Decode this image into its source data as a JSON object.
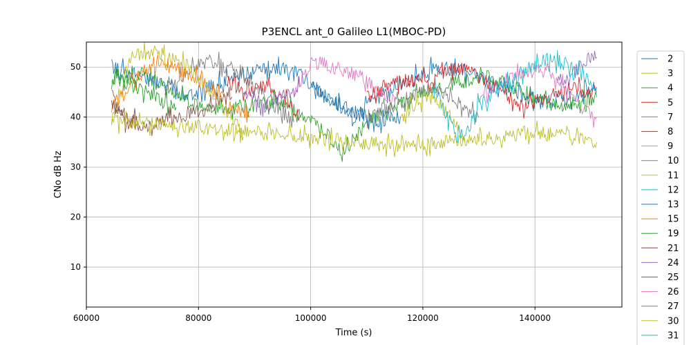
{
  "chart_data": {
    "type": "line",
    "title": "P3ENCL ant_0 Galileo L1(MBOC-PD)",
    "xlabel": "Time (s)",
    "ylabel": "CNo dB Hz",
    "xlim": [
      60000,
      155500
    ],
    "ylim": [
      2,
      55
    ],
    "xticks": [
      60000,
      80000,
      100000,
      120000,
      140000
    ],
    "yticks": [
      10,
      20,
      30,
      40,
      50
    ],
    "grid": true,
    "legend_position": "right-outside",
    "series": [
      {
        "name": "2",
        "color": "#1f77b4",
        "points": [
          [
            64500,
            50.2
          ],
          [
            70000,
            48
          ],
          [
            78000,
            44
          ],
          [
            85000,
            47.5
          ],
          [
            93000,
            50
          ],
          [
            97000,
            49.5
          ],
          [
            102000,
            45
          ],
          [
            108000,
            40
          ],
          [
            112000,
            44
          ],
          [
            118000,
            48
          ],
          [
            122000,
            50
          ],
          [
            128000,
            49
          ],
          [
            134000,
            46
          ],
          [
            141000,
            43
          ],
          [
            147000,
            44
          ],
          [
            151000,
            46
          ]
        ]
      },
      {
        "name": "3",
        "color": "#bcbd22",
        "points": [
          [
            64500,
            40
          ],
          [
            68000,
            52
          ],
          [
            72000,
            53
          ],
          [
            78000,
            50.5
          ],
          [
            82000,
            45
          ],
          [
            86000,
            40
          ],
          [
            88000,
            36
          ]
        ]
      },
      {
        "name": "4",
        "color": "#2ca02c",
        "points": [
          [
            64500,
            47
          ],
          [
            70000,
            48.5
          ],
          [
            76000,
            45
          ],
          [
            81000,
            41
          ],
          [
            87000,
            42
          ],
          [
            94000,
            43
          ],
          [
            100000,
            40
          ],
          [
            106000,
            33
          ],
          [
            110000,
            39
          ],
          [
            114000,
            42
          ],
          [
            120000,
            45
          ],
          [
            126000,
            47
          ],
          [
            132000,
            48
          ],
          [
            138000,
            45
          ],
          [
            144000,
            42
          ],
          [
            151000,
            44
          ]
        ]
      },
      {
        "name": "5",
        "color": "#d62728",
        "points": [
          [
            85000,
            47
          ],
          [
            88000,
            45.5
          ],
          [
            92000,
            46
          ],
          [
            96000,
            43
          ],
          [
            98000,
            40
          ]
        ]
      },
      {
        "name": "7",
        "color": "#9467bd",
        "points": [
          [
            144000,
            47
          ],
          [
            147000,
            49
          ],
          [
            149000,
            51.5
          ],
          [
            151000,
            52
          ]
        ]
      },
      {
        "name": "8",
        "color": "#8c564b",
        "points": [
          [
            64500,
            45
          ],
          [
            66000,
            41
          ],
          [
            67500,
            38
          ],
          [
            69000,
            40
          ]
        ]
      },
      {
        "name": "9",
        "color": "#e377c2",
        "points": [
          [
            97000,
            45
          ],
          [
            100000,
            51
          ],
          [
            103000,
            50.5
          ],
          [
            106000,
            49.5
          ],
          [
            109000,
            48
          ],
          [
            112000,
            45.5
          ],
          [
            115000,
            43
          ]
        ]
      },
      {
        "name": "10",
        "color": "#7f7f7f",
        "points": [
          [
            74000,
            45
          ],
          [
            78000,
            49
          ],
          [
            82000,
            51.5
          ],
          [
            86000,
            49.5
          ],
          [
            90000,
            46
          ],
          [
            94000,
            42
          ],
          [
            97000,
            39
          ]
        ]
      },
      {
        "name": "11",
        "color": "#bcbd22",
        "points": [
          [
            116000,
            40
          ],
          [
            119000,
            43
          ],
          [
            122000,
            44
          ],
          [
            125000,
            40
          ],
          [
            127500,
            35
          ]
        ]
      },
      {
        "name": "12",
        "color": "#17becf",
        "points": [
          [
            122000,
            46
          ],
          [
            124000,
            41
          ],
          [
            126000,
            36
          ],
          [
            128000,
            37
          ],
          [
            130000,
            43
          ]
        ]
      },
      {
        "name": "13",
        "color": "#1f77b4",
        "points": [
          [
            100000,
            46
          ],
          [
            104000,
            43
          ],
          [
            108000,
            41
          ],
          [
            112000,
            39
          ],
          [
            116000,
            40
          ]
        ]
      },
      {
        "name": "15",
        "color": "#ff7f0e",
        "points": [
          [
            64500,
            42
          ],
          [
            67000,
            45
          ],
          [
            70000,
            49
          ],
          [
            74000,
            50.5
          ],
          [
            78000,
            49
          ],
          [
            82000,
            46
          ],
          [
            86000,
            42
          ],
          [
            89000,
            40
          ]
        ]
      },
      {
        "name": "19",
        "color": "#2ca02c",
        "points": [
          [
            64500,
            48
          ],
          [
            68000,
            46.5
          ],
          [
            72000,
            44
          ],
          [
            76000,
            42
          ]
        ]
      },
      {
        "name": "21",
        "color": "#d62728",
        "points": [
          [
            110000,
            44
          ],
          [
            114000,
            46.5
          ],
          [
            118000,
            47.5
          ],
          [
            122000,
            48
          ],
          [
            126000,
            50
          ],
          [
            130000,
            48
          ],
          [
            134000,
            45
          ],
          [
            138000,
            42
          ],
          [
            142000,
            44
          ],
          [
            146000,
            46
          ],
          [
            151000,
            45
          ]
        ]
      },
      {
        "name": "24",
        "color": "#9467bd",
        "points": [
          [
            88000,
            45
          ],
          [
            92000,
            42
          ],
          [
            95000,
            44
          ],
          [
            98000,
            46
          ]
        ]
      },
      {
        "name": "25",
        "color": "#8c564b",
        "points": [
          [
            64500,
            42
          ],
          [
            70000,
            38
          ],
          [
            76000,
            40
          ],
          [
            82000,
            42
          ],
          [
            86000,
            44
          ]
        ]
      },
      {
        "name": "26",
        "color": "#e377c2",
        "points": [
          [
            130000,
            44
          ],
          [
            134000,
            47
          ],
          [
            138000,
            49
          ],
          [
            142000,
            49.5
          ],
          [
            146000,
            45
          ],
          [
            149000,
            41
          ],
          [
            151000,
            40
          ]
        ]
      },
      {
        "name": "27",
        "color": "#7f7f7f",
        "points": [
          [
            110000,
            40
          ],
          [
            114000,
            42
          ],
          [
            118000,
            44
          ],
          [
            122000,
            46
          ],
          [
            126000,
            43
          ],
          [
            130000,
            40
          ]
        ]
      },
      {
        "name": "30",
        "color": "#bcbd22",
        "points": [
          [
            64500,
            39
          ],
          [
            80000,
            38
          ],
          [
            100000,
            36
          ],
          [
            117000,
            34
          ],
          [
            140000,
            37
          ],
          [
            151000,
            35
          ]
        ]
      },
      {
        "name": "31",
        "color": "#17becf",
        "points": [
          [
            130000,
            42
          ],
          [
            134000,
            46
          ],
          [
            138000,
            49
          ],
          [
            142000,
            51.5
          ],
          [
            146000,
            50.5
          ],
          [
            149000,
            48
          ],
          [
            151000,
            46
          ]
        ]
      }
    ]
  }
}
